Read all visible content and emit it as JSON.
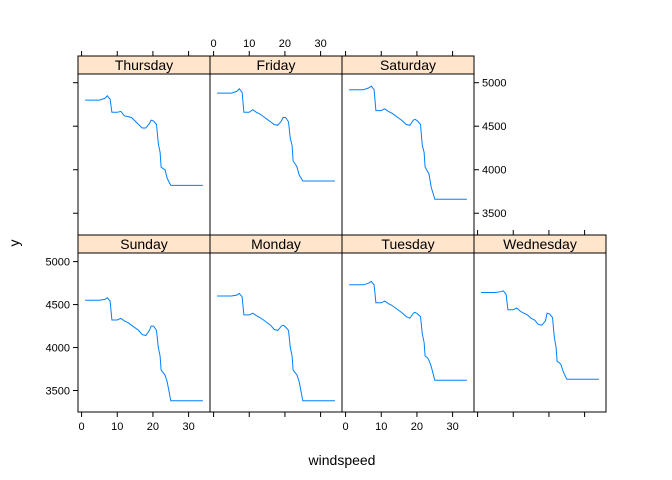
{
  "chart_data": {
    "type": "line",
    "layout": "lattice panels, 4 columns x 2 rows, shared axes",
    "xlabel": "windspeed",
    "ylabel": "y",
    "xlim": [
      -1,
      36
    ],
    "ylim": [
      3250,
      5100
    ],
    "x_ticks": [
      0,
      10,
      20,
      30
    ],
    "y_ticks": [
      3500,
      4000,
      4500,
      5000
    ],
    "strip_color": "#FFE5CC",
    "line_color": "#0080FF",
    "panels": [
      {
        "label": "Thursday",
        "x": [
          1,
          5,
          6.5,
          7.2,
          8,
          8.5,
          10,
          11,
          12,
          13,
          14,
          15,
          16,
          17,
          18,
          19,
          19.5,
          20.2,
          21,
          21.5,
          22,
          22.3,
          23,
          23.4,
          24,
          25,
          34
        ],
        "y": [
          4800,
          4800,
          4820,
          4850,
          4810,
          4660,
          4660,
          4670,
          4620,
          4610,
          4600,
          4560,
          4520,
          4480,
          4480,
          4530,
          4570,
          4560,
          4520,
          4300,
          4200,
          4030,
          4010,
          4000,
          3900,
          3820,
          3820
        ]
      },
      {
        "label": "Friday",
        "x": [
          1,
          5,
          6.5,
          7.2,
          8,
          8.5,
          10,
          11,
          12,
          13,
          14,
          15,
          16,
          17,
          18,
          19,
          19.5,
          20.2,
          21,
          21.5,
          22,
          22.3,
          23,
          23.4,
          24,
          25,
          34
        ],
        "y": [
          4880,
          4880,
          4900,
          4930,
          4890,
          4660,
          4660,
          4690,
          4660,
          4640,
          4610,
          4580,
          4550,
          4520,
          4510,
          4560,
          4600,
          4600,
          4550,
          4360,
          4280,
          4100,
          4060,
          4030,
          3940,
          3870,
          3870
        ]
      },
      {
        "label": "Saturday",
        "x": [
          1,
          5,
          6.5,
          7.2,
          8,
          8.5,
          10,
          11,
          12,
          13,
          14,
          15,
          16,
          17,
          18,
          19,
          19.5,
          20.2,
          21,
          21.5,
          22,
          22.3,
          23,
          23.4,
          24,
          25,
          34
        ],
        "y": [
          4920,
          4920,
          4940,
          4960,
          4920,
          4680,
          4680,
          4700,
          4670,
          4650,
          4620,
          4590,
          4560,
          4520,
          4510,
          4570,
          4580,
          4560,
          4520,
          4280,
          4200,
          4030,
          3980,
          3950,
          3800,
          3660,
          3660
        ]
      },
      {
        "label": "Sunday",
        "x": [
          1,
          5,
          6.5,
          7.2,
          8,
          8.5,
          10,
          11,
          12,
          13,
          14,
          15,
          16,
          17,
          18,
          19,
          19.5,
          20.2,
          21,
          21.5,
          22,
          22.3,
          23,
          23.4,
          24,
          25,
          34
        ],
        "y": [
          4550,
          4550,
          4560,
          4580,
          4540,
          4320,
          4320,
          4340,
          4310,
          4290,
          4260,
          4230,
          4200,
          4150,
          4140,
          4200,
          4250,
          4250,
          4200,
          4000,
          3900,
          3740,
          3700,
          3680,
          3600,
          3380,
          3380
        ]
      },
      {
        "label": "Monday",
        "x": [
          1,
          5,
          6.5,
          7.2,
          8,
          8.5,
          10,
          11,
          12,
          13,
          14,
          15,
          16,
          17,
          18,
          19,
          19.5,
          20.2,
          21,
          21.5,
          22,
          22.3,
          23,
          23.4,
          24,
          25,
          34
        ],
        "y": [
          4600,
          4600,
          4610,
          4630,
          4590,
          4380,
          4380,
          4400,
          4370,
          4350,
          4320,
          4290,
          4260,
          4210,
          4200,
          4250,
          4260,
          4240,
          4200,
          4000,
          3900,
          3740,
          3700,
          3680,
          3600,
          3380,
          3380
        ]
      },
      {
        "label": "Tuesday",
        "x": [
          1,
          5,
          6.5,
          7.2,
          8,
          8.5,
          10,
          11,
          12,
          13,
          14,
          15,
          16,
          17,
          18,
          19,
          19.5,
          20.2,
          21,
          21.5,
          22,
          22.3,
          23,
          23.4,
          24,
          25,
          34
        ],
        "y": [
          4730,
          4730,
          4750,
          4770,
          4730,
          4520,
          4520,
          4540,
          4510,
          4490,
          4460,
          4430,
          4400,
          4360,
          4340,
          4400,
          4410,
          4390,
          4360,
          4160,
          4060,
          3900,
          3880,
          3850,
          3780,
          3620,
          3620
        ]
      },
      {
        "label": "Wednesday",
        "x": [
          1,
          5,
          6.5,
          7.2,
          8,
          8.5,
          10,
          11,
          12,
          13,
          14,
          15,
          16,
          17,
          18,
          19,
          19.5,
          20.2,
          21,
          21.5,
          22,
          22.3,
          23,
          23.4,
          24,
          25,
          34
        ],
        "y": [
          4640,
          4640,
          4650,
          4660,
          4620,
          4440,
          4440,
          4460,
          4420,
          4400,
          4380,
          4340,
          4320,
          4270,
          4260,
          4310,
          4400,
          4390,
          4350,
          4120,
          4000,
          3840,
          3820,
          3800,
          3720,
          3630,
          3630
        ]
      }
    ]
  }
}
